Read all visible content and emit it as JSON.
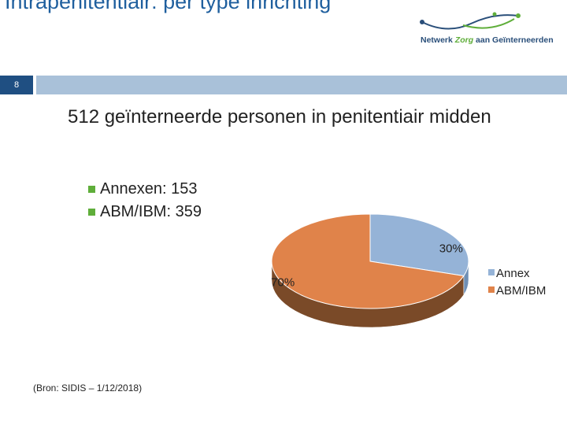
{
  "slide": {
    "title": "Intrapenitentiair: per type inrichting",
    "number": "8",
    "heading": "512 geïnterneerde personen in penitentiair midden",
    "bullets": [
      {
        "label": "Annexen: 153"
      },
      {
        "label": "ABM/IBM: 359"
      }
    ],
    "source": "(Bron: SIDIS – 1/12/2018)"
  },
  "logo": {
    "text_part1": "Netwerk ",
    "text_accent": "Zorg",
    "text_part2": " aan Geïnterneerden"
  },
  "colors": {
    "title": "#1f5f9e",
    "bar_dark": "#1f4f82",
    "bar_light": "#a9c1d9",
    "bullet": "#5fae3a"
  },
  "chart_data": {
    "type": "pie",
    "style": "3d",
    "title": "",
    "legend_position": "right",
    "slices": [
      {
        "name": "Annex",
        "value": 30,
        "label": "30%",
        "color": "#95b3d7",
        "side_color": "#6f8fb5"
      },
      {
        "name": "ABM/IBM",
        "value": 70,
        "label": "70%",
        "color": "#e0834a",
        "side_color": "#7a4a28"
      }
    ]
  }
}
